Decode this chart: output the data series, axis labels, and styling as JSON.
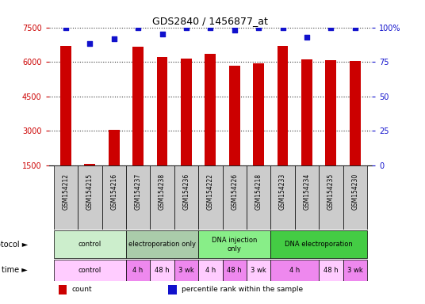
{
  "title": "GDS2840 / 1456877_at",
  "samples": [
    "GSM154212",
    "GSM154215",
    "GSM154216",
    "GSM154237",
    "GSM154238",
    "GSM154236",
    "GSM154222",
    "GSM154226",
    "GSM154218",
    "GSM154233",
    "GSM154234",
    "GSM154235",
    "GSM154230"
  ],
  "counts": [
    6700,
    1580,
    3050,
    6650,
    6200,
    6150,
    6350,
    5850,
    5920,
    6700,
    6100,
    6080,
    6050
  ],
  "percentile_ranks": [
    100,
    88,
    92,
    100,
    95,
    100,
    100,
    98,
    100,
    100,
    93,
    100,
    100
  ],
  "bar_color": "#cc0000",
  "dot_color": "#1111cc",
  "ylim_left": [
    1500,
    7500
  ],
  "yticks_left": [
    1500,
    3000,
    4500,
    6000,
    7500
  ],
  "ylim_right": [
    0,
    100
  ],
  "yticks_right": [
    0,
    25,
    50,
    75,
    100
  ],
  "yright_labels": [
    "0",
    "25",
    "50",
    "75",
    "100%"
  ],
  "protocol_groups": [
    {
      "label": "control",
      "start": 0,
      "end": 3,
      "color": "#cceecc"
    },
    {
      "label": "electroporation only",
      "start": 3,
      "end": 6,
      "color": "#aaccaa"
    },
    {
      "label": "DNA injection\nonly",
      "start": 6,
      "end": 9,
      "color": "#88ee88"
    },
    {
      "label": "DNA electroporation",
      "start": 9,
      "end": 13,
      "color": "#44cc44"
    }
  ],
  "time_groups": [
    {
      "label": "control",
      "start": 0,
      "end": 3,
      "color": "#ffccff"
    },
    {
      "label": "4 h",
      "start": 3,
      "end": 4,
      "color": "#ee88ee"
    },
    {
      "label": "48 h",
      "start": 4,
      "end": 5,
      "color": "#ffccff"
    },
    {
      "label": "3 wk",
      "start": 5,
      "end": 6,
      "color": "#ee88ee"
    },
    {
      "label": "4 h",
      "start": 6,
      "end": 7,
      "color": "#ffccff"
    },
    {
      "label": "48 h",
      "start": 7,
      "end": 8,
      "color": "#ee88ee"
    },
    {
      "label": "3 wk",
      "start": 8,
      "end": 9,
      "color": "#ffccff"
    },
    {
      "label": "4 h",
      "start": 9,
      "end": 11,
      "color": "#ee88ee"
    },
    {
      "label": "48 h",
      "start": 11,
      "end": 12,
      "color": "#ffccff"
    },
    {
      "label": "3 wk",
      "start": 12,
      "end": 13,
      "color": "#ee88ee"
    }
  ],
  "legend_items": [
    {
      "label": "count",
      "color": "#cc0000"
    },
    {
      "label": "percentile rank within the sample",
      "color": "#1111cc"
    }
  ],
  "bg_color": "#ffffff",
  "grid_color": "#333333",
  "label_color_left": "#cc0000",
  "label_color_right": "#1111cc",
  "xtick_bg": "#cccccc"
}
